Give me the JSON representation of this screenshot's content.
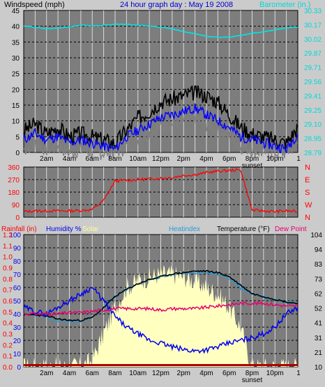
{
  "header": {
    "windspeed_label": "Windspeed (mph)",
    "title": "24 hour graph day : May 19 2008",
    "barometer_label": "Barometer (in.)"
  },
  "bottom_header": {
    "rainfall": "Rainfall (in)",
    "humidity": "Humidity %",
    "solar": "Solar",
    "heatindex": "Heatindex",
    "temperature": "Temperature (°F)",
    "dewpoint": "Dew Point"
  },
  "x_axis": {
    "ticks": [
      "2am",
      "4am",
      "6am",
      "8am",
      "10am",
      "12pm",
      "2pm",
      "4pm",
      "6pm",
      "8pm",
      "10pm"
    ],
    "sunset_label": "sunset"
  },
  "colors": {
    "background": "#cbcbcb",
    "plot_bg": "#7d7d7d",
    "gust": "#000000",
    "wind": "#0000ff",
    "wind_avg": "#808080",
    "barometer": "#00e6e6",
    "direction": "#ff0000",
    "humidity": "#0000ee",
    "heatindex": "#2a9ad6",
    "temperature": "#000000",
    "dewpoint": "#e6006e",
    "solar": "#ffffc0",
    "rain": "#b00000"
  },
  "chart_data": [
    {
      "type": "line",
      "title": "24 hour graph day : May 19 2008",
      "ylabel": "Windspeed (mph)",
      "y2label": "Barometer (in.)",
      "ylim": [
        0,
        45
      ],
      "yticks": [
        "0",
        "5",
        "10",
        "15",
        "20",
        "25",
        "30",
        "35",
        "40",
        "45"
      ],
      "y2ticks": [
        "28.79",
        "28.95",
        "29.10",
        "29.25",
        "29.41",
        "29.56",
        "29.71",
        "29.87",
        "30.02",
        "30.17",
        "30.33"
      ],
      "y2lim": [
        28.79,
        30.33
      ],
      "x_hours": [
        0,
        1,
        2,
        3,
        4,
        5,
        6,
        7,
        8,
        9,
        10,
        11,
        12,
        13,
        14,
        15,
        16,
        17,
        18,
        19,
        20,
        21,
        22,
        23,
        24
      ],
      "series": [
        {
          "name": "Gust",
          "values": [
            7,
            9,
            6,
            8,
            5,
            6,
            5,
            4,
            3,
            7,
            11,
            13,
            16,
            17,
            18,
            19,
            18,
            16,
            12,
            8,
            6,
            5,
            4,
            3,
            8
          ]
        },
        {
          "name": "Wind",
          "values": [
            4,
            6,
            4,
            5,
            3,
            4,
            3,
            2,
            1,
            5,
            7,
            9,
            11,
            12,
            13,
            14,
            12,
            10,
            8,
            5,
            4,
            3,
            2,
            1,
            6
          ]
        },
        {
          "name": "Barometer",
          "values": [
            30.16,
            30.15,
            30.13,
            30.14,
            30.15,
            30.17,
            30.16,
            30.17,
            30.18,
            30.18,
            30.17,
            30.16,
            30.15,
            30.13,
            30.1,
            30.08,
            30.05,
            30.04,
            30.04,
            30.06,
            30.08,
            30.1,
            30.12,
            30.14,
            30.15
          ]
        }
      ]
    },
    {
      "type": "line",
      "ylabel": "Wind direction",
      "ylim": [
        0,
        360
      ],
      "yticks": [
        "0",
        "90",
        "180",
        "270",
        "360"
      ],
      "compass": [
        "N",
        "W",
        "S",
        "E",
        "N"
      ],
      "x_hours": [
        0,
        1,
        2,
        3,
        4,
        5,
        6,
        7,
        8,
        9,
        10,
        11,
        12,
        13,
        14,
        15,
        16,
        17,
        18,
        19,
        20,
        21,
        22,
        23,
        24
      ],
      "series": [
        {
          "name": "Direction",
          "values": [
            40,
            45,
            45,
            45,
            45,
            48,
            55,
            120,
            260,
            265,
            270,
            275,
            280,
            285,
            300,
            305,
            320,
            330,
            335,
            340,
            50,
            45,
            40,
            45,
            40
          ]
        }
      ]
    },
    {
      "type": "line",
      "ylabel": "Humidity %",
      "y2label": "Temperature (°F)",
      "ylim": [
        0,
        100
      ],
      "yticks": [
        "0",
        "10",
        "20",
        "30",
        "40",
        "50",
        "60",
        "70",
        "80",
        "90",
        "100"
      ],
      "rain_ticks": [
        "0.0",
        "0.1",
        "0.2",
        "0.3",
        "0.4",
        "0.5",
        "0.6",
        "0.7",
        "0.8",
        "0.9",
        "1.0",
        "1.1",
        "1.2"
      ],
      "temp_ticks": [
        "10",
        "21",
        "31",
        "41",
        "52",
        "62",
        "73",
        "83",
        "94",
        "104"
      ],
      "templim": [
        10,
        104
      ],
      "x_hours": [
        0,
        1,
        2,
        3,
        4,
        5,
        6,
        7,
        8,
        9,
        10,
        11,
        12,
        13,
        14,
        15,
        16,
        17,
        18,
        19,
        20,
        21,
        22,
        23,
        24
      ],
      "series": [
        {
          "name": "Humidity",
          "values": [
            45,
            42,
            40,
            45,
            50,
            55,
            60,
            50,
            38,
            30,
            25,
            20,
            18,
            15,
            13,
            12,
            13,
            15,
            18,
            20,
            22,
            25,
            30,
            40,
            45
          ]
        },
        {
          "name": "Heatindex",
          "values": [
            47,
            47,
            45,
            43,
            42,
            42,
            45,
            52,
            60,
            65,
            69,
            72,
            74,
            75,
            77,
            77,
            77,
            76,
            73,
            66,
            62,
            60,
            58,
            56,
            55
          ]
        },
        {
          "name": "Temperature",
          "values": [
            47,
            47,
            46,
            44,
            43,
            43,
            45,
            52,
            60,
            65,
            69,
            72,
            74,
            76,
            77,
            78,
            78,
            77,
            74,
            68,
            62,
            60,
            58,
            56,
            55
          ]
        },
        {
          "name": "Dew Point",
          "values": [
            40,
            40,
            40,
            40,
            41,
            41,
            42,
            43,
            44,
            44,
            44,
            44,
            43,
            44,
            44,
            44,
            45,
            46,
            47,
            48,
            48,
            48,
            47,
            46,
            46
          ]
        },
        {
          "name": "Solar",
          "values": [
            0,
            0,
            0,
            0,
            0,
            0,
            5,
            25,
            45,
            60,
            65,
            68,
            70,
            70,
            68,
            65,
            60,
            55,
            45,
            30,
            0,
            0,
            0,
            0,
            0
          ]
        },
        {
          "name": "Rainfall",
          "values": [
            0,
            0,
            0,
            0,
            0,
            0,
            0,
            0,
            0,
            0,
            0,
            0,
            0,
            0,
            0,
            0,
            0,
            0,
            0,
            0,
            0,
            0,
            0,
            0,
            0
          ]
        }
      ]
    }
  ]
}
